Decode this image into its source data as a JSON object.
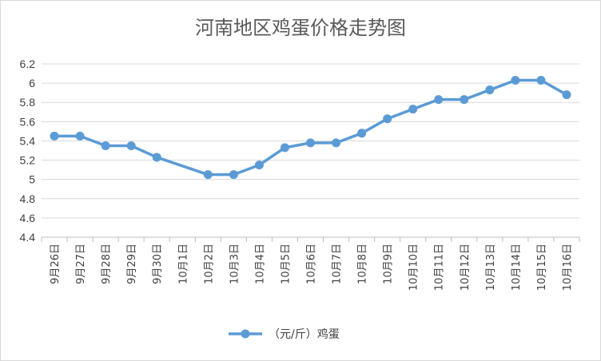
{
  "chart_data": {
    "type": "line",
    "title": "河南地区鸡蛋价格走势图",
    "xlabel": "",
    "ylabel": "",
    "ylim": [
      4.4,
      6.2
    ],
    "yticks": [
      "4.4",
      "4.6",
      "4.8",
      "5",
      "5.2",
      "5.4",
      "5.6",
      "5.8",
      "6",
      "6.2"
    ],
    "grid": true,
    "legend_position": "bottom",
    "categories": [
      "9月26日",
      "9月27日",
      "9月28日",
      "9月29日",
      "9月30日",
      "10月1日",
      "10月2日",
      "10月3日",
      "10月4日",
      "10月5日",
      "10月6日",
      "10月7日",
      "10月8日",
      "10月9日",
      "10月10日",
      "10月11日",
      "10月12日",
      "10月13日",
      "10月14日",
      "10月15日",
      "10月16日"
    ],
    "series": [
      {
        "name": "（元/斤）鸡蛋",
        "color": "#5b9bd5",
        "values": [
          5.45,
          5.45,
          5.35,
          5.35,
          5.23,
          null,
          5.05,
          5.05,
          5.15,
          5.33,
          5.38,
          5.38,
          5.48,
          5.63,
          5.73,
          5.83,
          5.83,
          5.93,
          6.03,
          6.03,
          5.88
        ]
      }
    ]
  }
}
